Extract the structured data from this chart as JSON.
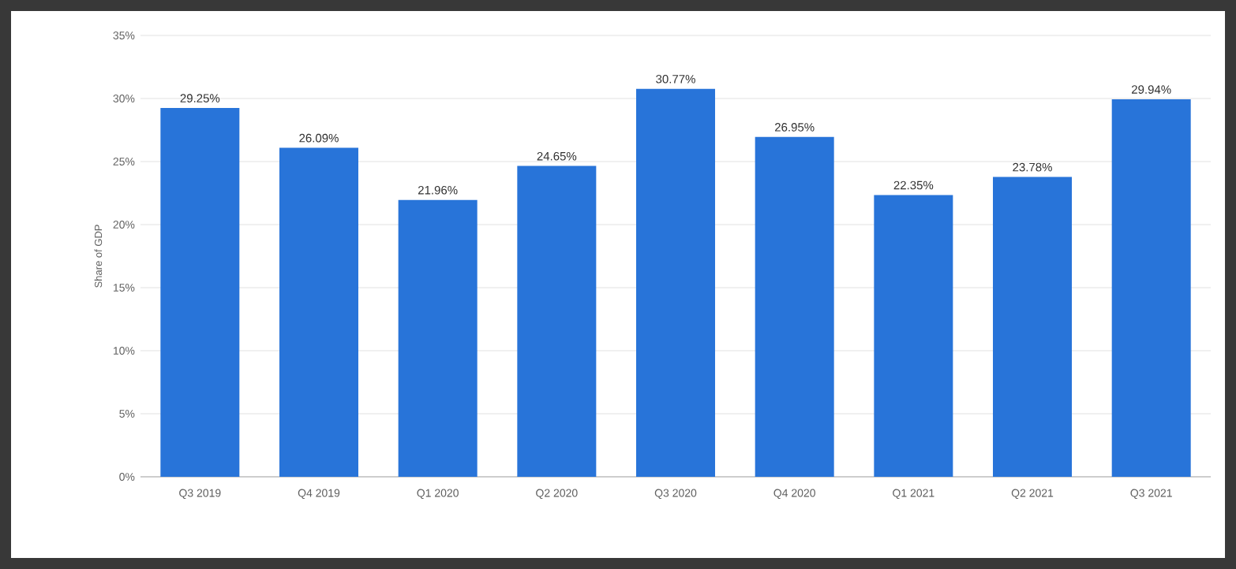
{
  "chart_data": {
    "type": "bar",
    "ylabel": "Share of GDP",
    "categories": [
      "Q3 2019",
      "Q4 2019",
      "Q1 2020",
      "Q2 2020",
      "Q3 2020",
      "Q4 2020",
      "Q1 2021",
      "Q2 2021",
      "Q3 2021"
    ],
    "values": [
      29.25,
      26.09,
      21.96,
      24.65,
      30.77,
      26.95,
      22.35,
      23.78,
      29.94
    ],
    "value_labels": [
      "29.25%",
      "26.09%",
      "21.96%",
      "24.65%",
      "30.77%",
      "26.95%",
      "22.35%",
      "23.78%",
      "29.94%"
    ],
    "color": "#2874d9",
    "ylim": [
      0,
      35
    ],
    "yticks": [
      {
        "value": 0,
        "label": "0%"
      },
      {
        "value": 5,
        "label": "5%"
      },
      {
        "value": 10,
        "label": "10%"
      },
      {
        "value": 15,
        "label": "15%"
      },
      {
        "value": 20,
        "label": "20%"
      },
      {
        "value": 25,
        "label": "25%"
      },
      {
        "value": 30,
        "label": "30%"
      },
      {
        "value": 35,
        "label": "35%"
      }
    ],
    "grid": "y"
  }
}
